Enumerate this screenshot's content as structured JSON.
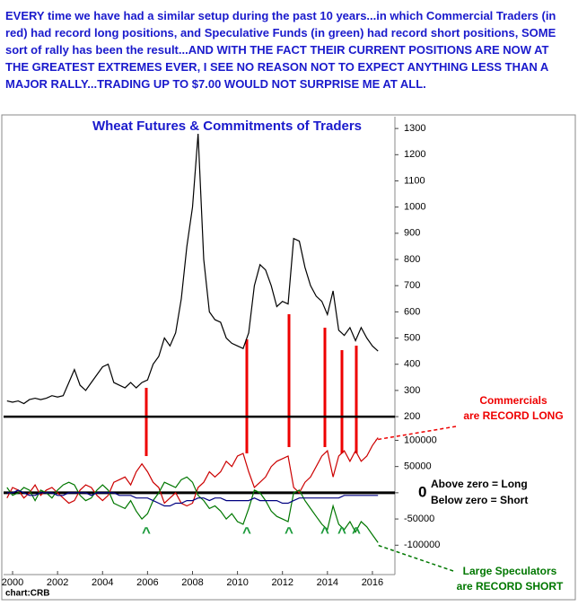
{
  "commentary": "EVERY time we have had a similar setup during the past 10 years...in which Commercial Traders (in red) had record long positions, and Speculative Funds (in green) had record short positions, SOME sort of rally has been the result...AND WITH THE FACT THEIR CURRENT POSITIONS ARE NOW AT THE GREATEST EXTREMES  EVER, I SEE NO REASON NOT TO EXPECT ANYTHING LESS THAN A MAJOR RALLY...TRADING UP TO $7.00 WOULD NOT SURPRISE ME AT ALL.",
  "chart_data": {
    "type": "line",
    "title": "Wheat Futures & Commitments of Traders",
    "x": [
      1999.75,
      2000,
      2000.25,
      2000.5,
      2000.75,
      2001,
      2001.25,
      2001.5,
      2001.75,
      2002,
      2002.25,
      2002.5,
      2002.75,
      2003,
      2003.25,
      2003.5,
      2003.75,
      2004,
      2004.25,
      2004.5,
      2004.75,
      2005,
      2005.25,
      2005.5,
      2005.75,
      2006,
      2006.25,
      2006.5,
      2006.75,
      2007,
      2007.25,
      2007.5,
      2007.75,
      2008,
      2008.25,
      2008.5,
      2008.75,
      2009,
      2009.25,
      2009.5,
      2009.75,
      2010,
      2010.25,
      2010.5,
      2010.75,
      2011,
      2011.25,
      2011.5,
      2011.75,
      2012,
      2012.25,
      2012.5,
      2012.75,
      2013,
      2013.25,
      2013.5,
      2013.75,
      2014,
      2014.25,
      2014.5,
      2014.75,
      2015,
      2015.25,
      2015.5,
      2015.75,
      2016,
      2016.25
    ],
    "series": [
      {
        "color": "#000000",
        "axis": "y",
        "values": [
          260,
          255,
          260,
          250,
          265,
          270,
          265,
          270,
          280,
          275,
          280,
          330,
          380,
          320,
          300,
          330,
          360,
          390,
          400,
          330,
          320,
          310,
          330,
          310,
          330,
          340,
          400,
          430,
          500,
          470,
          520,
          650,
          850,
          1000,
          1280,
          800,
          600,
          570,
          560,
          500,
          480,
          470,
          460,
          520,
          700,
          780,
          760,
          700,
          620,
          640,
          630,
          880,
          870,
          770,
          700,
          660,
          640,
          590,
          680,
          530,
          510,
          540,
          490,
          540,
          500,
          470,
          450
        ]
      },
      {
        "color": "#cc0000",
        "axis": "y2",
        "values": [
          -10000,
          10000,
          5000,
          -10000,
          0,
          15000,
          -5000,
          5000,
          10000,
          0,
          -10000,
          -20000,
          -15000,
          5000,
          15000,
          10000,
          -5000,
          -15000,
          -5000,
          20000,
          25000,
          30000,
          15000,
          40000,
          55000,
          40000,
          20000,
          10000,
          -20000,
          -10000,
          0,
          -20000,
          -25000,
          -20000,
          10000,
          20000,
          40000,
          30000,
          40000,
          60000,
          50000,
          70000,
          75000,
          40000,
          10000,
          20000,
          30000,
          50000,
          60000,
          65000,
          70000,
          10000,
          0,
          20000,
          30000,
          50000,
          70000,
          80000,
          30000,
          70000,
          80000,
          60000,
          80000,
          60000,
          70000,
          90000,
          105000
        ]
      },
      {
        "color": "#007700",
        "axis": "y2",
        "values": [
          10000,
          -5000,
          0,
          10000,
          5000,
          -15000,
          5000,
          0,
          -10000,
          5000,
          15000,
          20000,
          15000,
          -5000,
          -15000,
          -10000,
          5000,
          15000,
          5000,
          -20000,
          -25000,
          -30000,
          -15000,
          -35000,
          -50000,
          -40000,
          -15000,
          0,
          20000,
          15000,
          10000,
          25000,
          30000,
          20000,
          -5000,
          -15000,
          -30000,
          -25000,
          -35000,
          -50000,
          -40000,
          -55000,
          -60000,
          -30000,
          5000,
          0,
          -15000,
          -35000,
          -45000,
          -50000,
          -55000,
          0,
          5000,
          -15000,
          -30000,
          -45000,
          -60000,
          -70000,
          -25000,
          -60000,
          -70000,
          -55000,
          -75000,
          -55000,
          -65000,
          -80000,
          -95000
        ]
      },
      {
        "color": "#000080",
        "axis": "y2",
        "values": [
          0,
          0,
          5000,
          0,
          -5000,
          -5000,
          0,
          0,
          0,
          -5000,
          -5000,
          0,
          0,
          0,
          0,
          -5000,
          0,
          0,
          0,
          0,
          -5000,
          -5000,
          -5000,
          -10000,
          -10000,
          -10000,
          -15000,
          -20000,
          -25000,
          -25000,
          -20000,
          -20000,
          -15000,
          -15000,
          -10000,
          -10000,
          -15000,
          -10000,
          -10000,
          -15000,
          -15000,
          -15000,
          -15000,
          -15000,
          -10000,
          -15000,
          -15000,
          -15000,
          -15000,
          -20000,
          -20000,
          -15000,
          -10000,
          -10000,
          -10000,
          -10000,
          -10000,
          -10000,
          -10000,
          -10000,
          -5000,
          -5000,
          -5000,
          -5000,
          -5000,
          -5000,
          -5000
        ]
      }
    ],
    "xlim": [
      1999.6,
      2017.0
    ],
    "xticks": [
      2000,
      2002,
      2004,
      2006,
      2008,
      2010,
      2012,
      2014,
      2016
    ],
    "ylim": [
      -403,
      1345
    ],
    "yticks": [
      200,
      300,
      400,
      500,
      600,
      700,
      800,
      900,
      1000,
      1100,
      1200,
      1300
    ],
    "y2lim": [
      -156000,
      717000
    ],
    "y2ticks": [
      -100000,
      -50000,
      0,
      50000,
      100000
    ],
    "annotations": [
      "Commercials",
      "are RECORD LONG",
      "Above zero = Long",
      "Below zero = Short",
      "Large Speculators",
      "are RECORD SHORT",
      "chart:CRB"
    ],
    "carets": [
      "^",
      "^",
      "^",
      "^",
      "^",
      "^"
    ]
  }
}
